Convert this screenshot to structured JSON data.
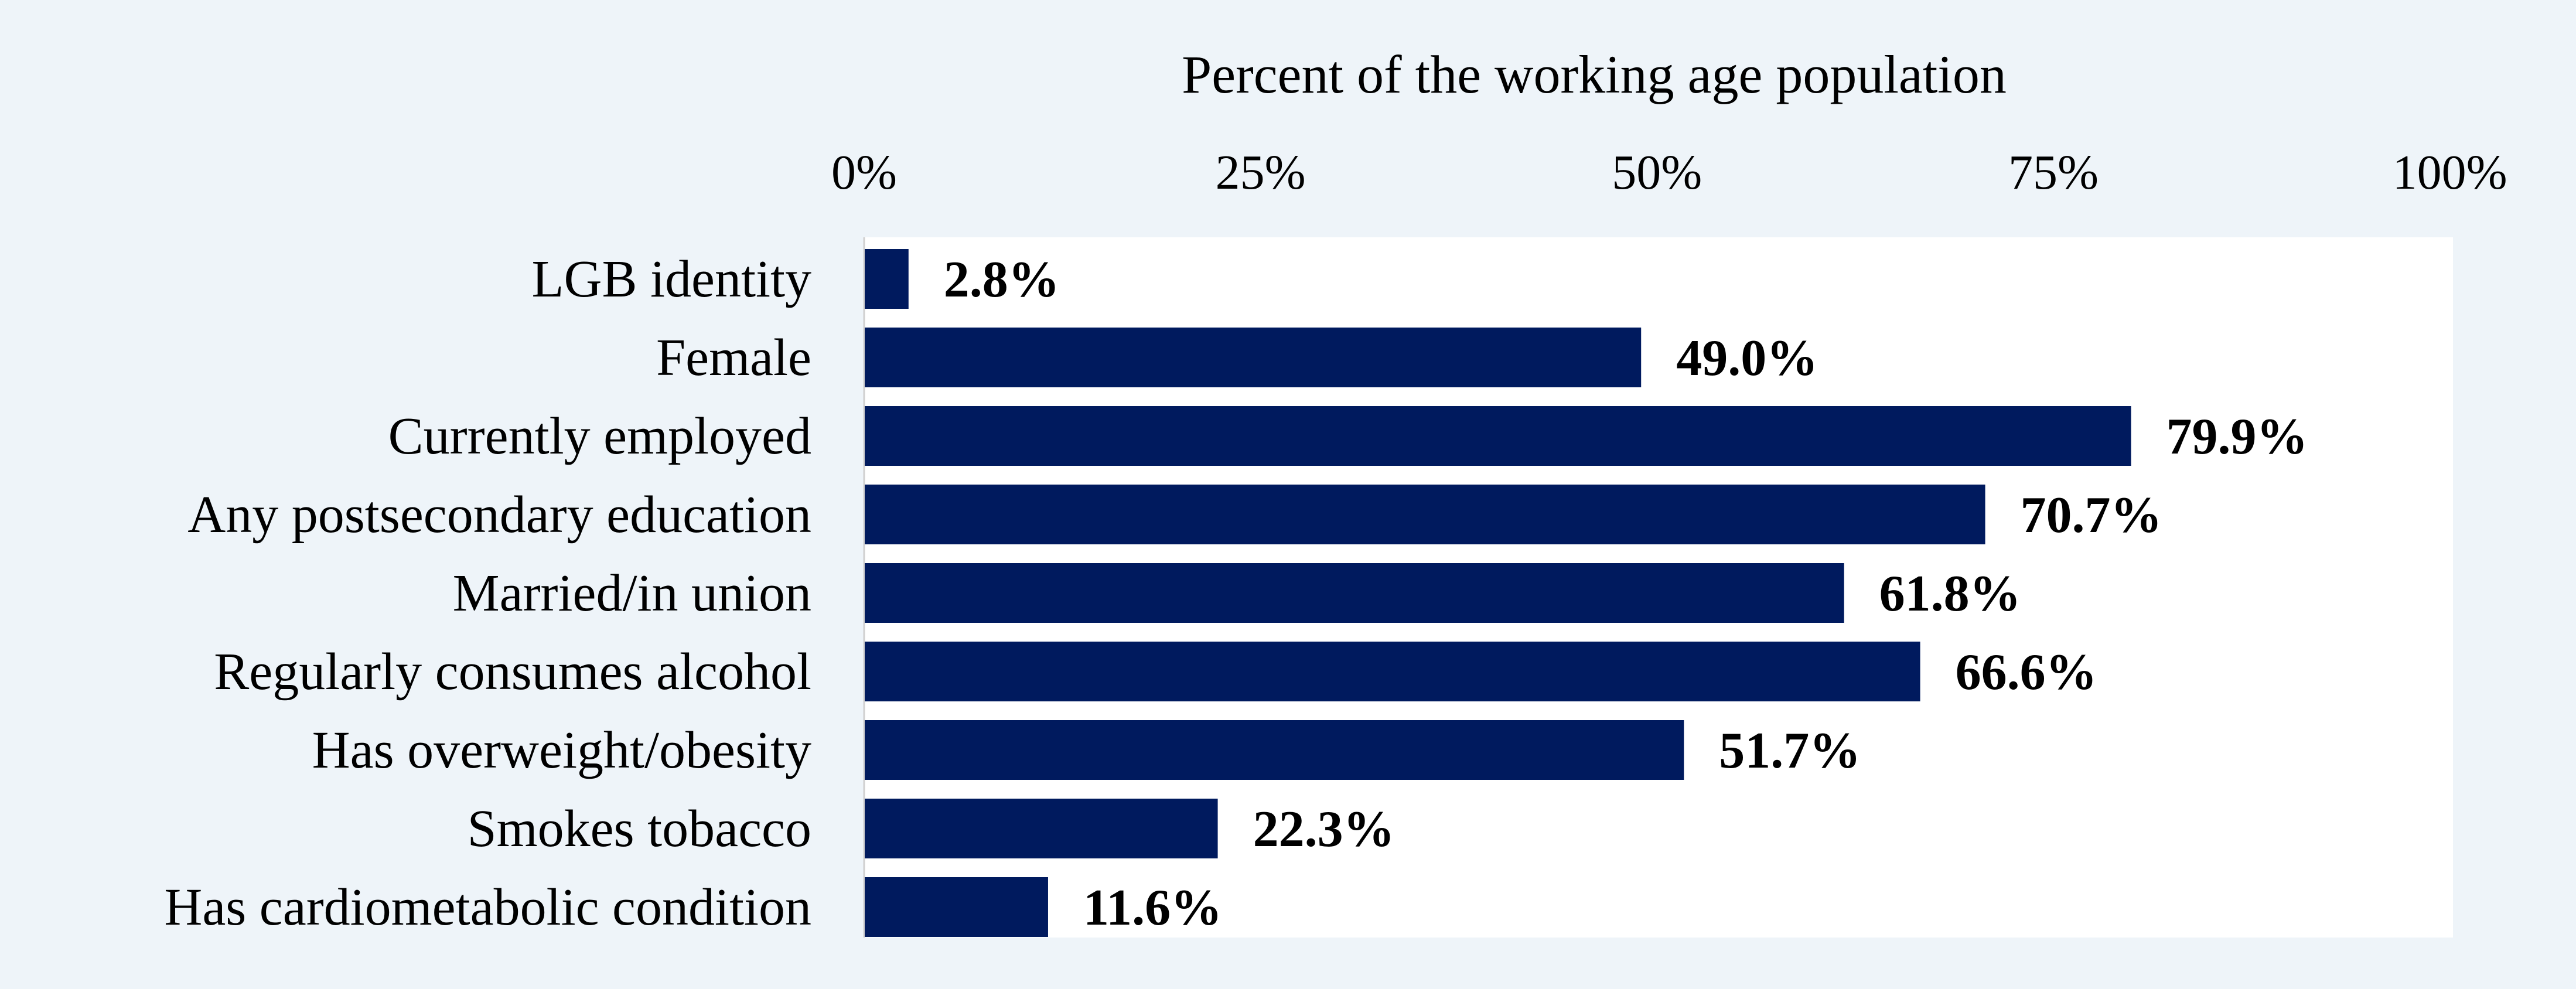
{
  "colors": {
    "outer_background": "#eef4f9",
    "plot_background": "#ffffff",
    "bar": "#001a5e",
    "text": "#000000",
    "axis_line": "#d0d0d0"
  },
  "chart_data": {
    "type": "bar",
    "orientation": "horizontal",
    "title": "Percent of the working age population",
    "xlabel": "Percent of the working age population",
    "ylabel": "",
    "xlim": [
      0,
      100
    ],
    "x_axis_position": "top",
    "x_ticks": [
      "0%",
      "25%",
      "50%",
      "75%",
      "100%"
    ],
    "x_tick_values": [
      0,
      25,
      50,
      75,
      100
    ],
    "grid": false,
    "legend": "none",
    "categories": [
      "LGB identity",
      "Female",
      "Currently employed",
      "Any postsecondary education",
      "Married/in union",
      "Regularly consumes alcohol ",
      "Has overweight/obesity",
      "Smokes tobacco",
      "Has cardiometabolic condition"
    ],
    "values": [
      2.8,
      49.0,
      79.9,
      70.7,
      61.8,
      66.6,
      51.7,
      22.3,
      11.6
    ],
    "data_labels": [
      "2.8%",
      "49.0%",
      "79.9%",
      "70.7%",
      "61.8%",
      "66.6%",
      "51.7%",
      "22.3%",
      "11.6%"
    ]
  }
}
